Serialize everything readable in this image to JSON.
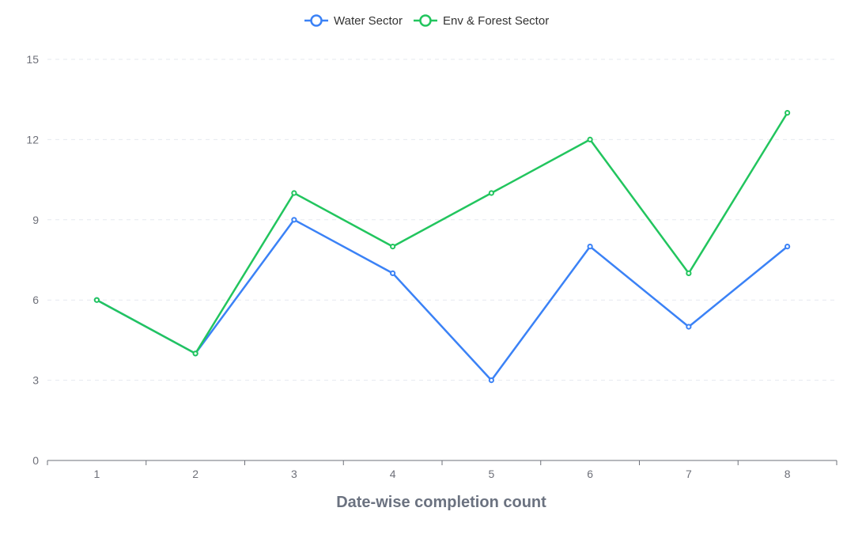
{
  "chart_data": {
    "type": "line",
    "title": "",
    "xlabel": "Date-wise completion count",
    "ylabel": "",
    "categories": [
      "1",
      "2",
      "3",
      "4",
      "5",
      "6",
      "7",
      "8"
    ],
    "ylim": [
      0,
      15
    ],
    "yticks": [
      0,
      3,
      6,
      9,
      12,
      15
    ],
    "grid": true,
    "legend_position": "top-center",
    "series": [
      {
        "name": "Water Sector",
        "color": "#3b82f6",
        "values": [
          6,
          4,
          9,
          7,
          3,
          8,
          5,
          8
        ]
      },
      {
        "name": "Env & Forest Sector",
        "color": "#22c55e",
        "values": [
          6,
          4,
          10,
          8,
          10,
          12,
          7,
          13
        ]
      }
    ]
  }
}
